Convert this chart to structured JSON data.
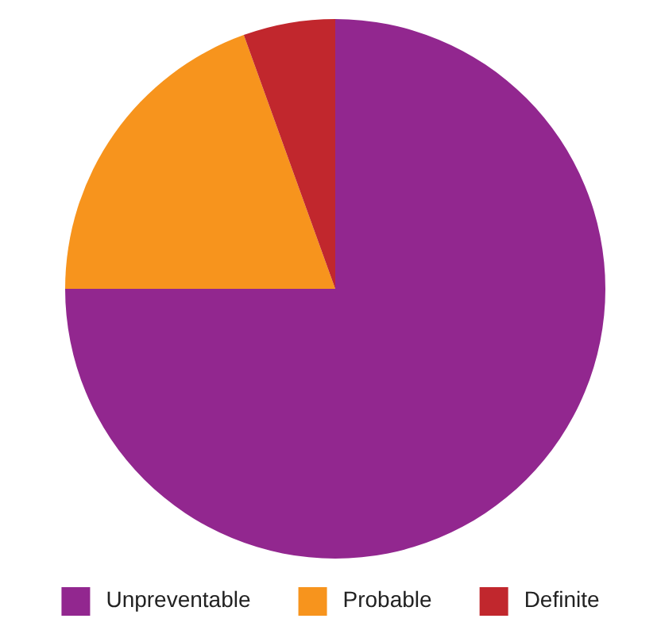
{
  "chart_data": {
    "type": "pie",
    "categories": [
      "Unpreventable",
      "Probable",
      "Definite"
    ],
    "values": [
      75,
      19.5,
      5.5
    ],
    "colors": [
      "#92278f",
      "#f7941d",
      "#c1272d"
    ],
    "legend": "bottom"
  }
}
